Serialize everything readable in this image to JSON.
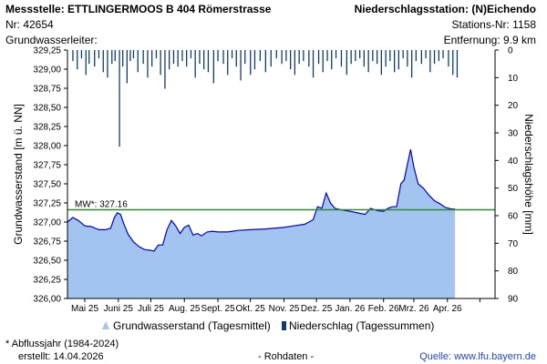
{
  "header": {
    "station_title": "Messstelle: ETTLINGERMOOS B 404 Römerstrasse",
    "station_nr": "Nr: 42654",
    "aquifer_label": "Grundwasserleiter:",
    "precip_station": "Niederschlagsstation: (N)Eichendo",
    "precip_station_nr": "Stations-Nr: 1158",
    "distance": "Entfernung: 9.9 km"
  },
  "footer": {
    "note": "* Abflussjahr (1984-2024)",
    "created": "erstellt:  14.04.2026",
    "rawdata": "- Rohdaten -",
    "source": "Quelle: www.lfu.bayern.de"
  },
  "colors": {
    "groundwater_fill": "#a3c4ee",
    "groundwater_line": "#0000c8",
    "precip_bar": "#113d6e",
    "mean_line": "#2e8b2e",
    "axis": "#000000"
  },
  "chart_data": {
    "type": "area",
    "ylabel_left": "Grundwasserstand [m ü. NN]",
    "ylabel_right": "Niederschlagshöhe [mm]",
    "ylim_left": [
      326.0,
      329.25
    ],
    "ylim_right": [
      0,
      90
    ],
    "left_ticks": [
      "329,25",
      "329,00",
      "328,75",
      "328,50",
      "328,25",
      "328,00",
      "327,75",
      "327,50",
      "327,25",
      "327,00",
      "326,75",
      "326,50",
      "326,25",
      "326,00"
    ],
    "right_ticks": [
      "0",
      "10",
      "20",
      "30",
      "40",
      "50",
      "60",
      "70",
      "80",
      "90"
    ],
    "x_ticks": [
      "Mai 25",
      "Juni 25",
      "Juli 25",
      "Aug. 25",
      "Sept. 25",
      "Okt. 25",
      "Nov. 25",
      "Dez. 25",
      "Jan. 26",
      "Feb. 26",
      "Mrz. 26",
      "Apr. 26"
    ],
    "x_start": "2025-04-15",
    "x_end": "2026-05-15",
    "mean_value": 327.16,
    "mean_label": "MW*: 327.16",
    "legend": [
      {
        "name": "Grundwasserstand (Tagesmittel)",
        "icon": "triangle-area-icon"
      },
      {
        "name": "Niederschlag (Tagessummen)",
        "icon": "bar-icon"
      }
    ],
    "groundwater": {
      "name": "Grundwasserstand (Tagesmittel)",
      "x": [
        "2025-04-15",
        "2025-04-20",
        "2025-04-25",
        "2025-05-01",
        "2025-05-07",
        "2025-05-14",
        "2025-05-20",
        "2025-05-25",
        "2025-05-28",
        "2025-05-31",
        "2025-06-03",
        "2025-06-06",
        "2025-06-10",
        "2025-06-15",
        "2025-06-20",
        "2025-06-25",
        "2025-07-01",
        "2025-07-04",
        "2025-07-08",
        "2025-07-12",
        "2025-07-16",
        "2025-07-20",
        "2025-07-24",
        "2025-07-28",
        "2025-08-01",
        "2025-08-05",
        "2025-08-09",
        "2025-08-13",
        "2025-08-17",
        "2025-08-22",
        "2025-08-27",
        "2025-09-01",
        "2025-09-10",
        "2025-09-20",
        "2025-10-01",
        "2025-10-15",
        "2025-11-01",
        "2025-11-10",
        "2025-11-20",
        "2025-11-28",
        "2025-12-02",
        "2025-12-06",
        "2025-12-10",
        "2025-12-14",
        "2025-12-18",
        "2025-12-24",
        "2026-01-01",
        "2026-01-08",
        "2026-01-15",
        "2026-01-20",
        "2026-01-26",
        "2026-02-01",
        "2026-02-05",
        "2026-02-09",
        "2026-02-13",
        "2026-02-17",
        "2026-02-20",
        "2026-02-23",
        "2026-02-26",
        "2026-03-01",
        "2026-03-05",
        "2026-03-10",
        "2026-03-15",
        "2026-03-20",
        "2026-03-25",
        "2026-03-30",
        "2026-04-05",
        "2026-04-08"
      ],
      "y": [
        327.0,
        327.06,
        327.02,
        326.95,
        326.94,
        326.9,
        326.9,
        326.92,
        327.05,
        327.12,
        327.1,
        326.98,
        326.84,
        326.74,
        326.68,
        326.64,
        326.63,
        326.62,
        326.7,
        326.7,
        326.9,
        327.02,
        326.95,
        326.85,
        326.93,
        326.96,
        326.83,
        326.85,
        326.82,
        326.87,
        326.88,
        326.87,
        326.87,
        326.89,
        326.9,
        326.91,
        326.93,
        326.95,
        326.97,
        327.03,
        327.2,
        327.18,
        327.38,
        327.25,
        327.18,
        327.16,
        327.14,
        327.12,
        327.1,
        327.18,
        327.15,
        327.14,
        327.18,
        327.2,
        327.2,
        327.5,
        327.55,
        327.75,
        327.95,
        327.72,
        327.5,
        327.44,
        327.35,
        327.28,
        327.24,
        327.19,
        327.17,
        327.17
      ]
    },
    "precipitation": {
      "name": "Niederschlag (Tagessummen)",
      "x": [
        "2025-04-20",
        "2025-04-24",
        "2025-04-28",
        "2025-05-02",
        "2025-05-05",
        "2025-05-10",
        "2025-05-14",
        "2025-05-18",
        "2025-05-22",
        "2025-05-26",
        "2025-05-29",
        "2025-06-02",
        "2025-06-05",
        "2025-06-09",
        "2025-06-12",
        "2025-06-15",
        "2025-06-19",
        "2025-06-24",
        "2025-06-28",
        "2025-07-02",
        "2025-07-06",
        "2025-07-10",
        "2025-07-14",
        "2025-07-18",
        "2025-07-22",
        "2025-07-26",
        "2025-07-30",
        "2025-08-03",
        "2025-08-07",
        "2025-08-11",
        "2025-08-15",
        "2025-08-19",
        "2025-08-23",
        "2025-08-28",
        "2025-09-01",
        "2025-09-06",
        "2025-09-10",
        "2025-09-14",
        "2025-09-18",
        "2025-09-22",
        "2025-09-26",
        "2025-10-01",
        "2025-10-05",
        "2025-10-10",
        "2025-10-15",
        "2025-10-20",
        "2025-10-25",
        "2025-10-30",
        "2025-11-03",
        "2025-11-07",
        "2025-11-11",
        "2025-11-15",
        "2025-11-19",
        "2025-11-24",
        "2025-11-28",
        "2025-12-03",
        "2025-12-07",
        "2025-12-11",
        "2025-12-15",
        "2025-12-19",
        "2025-12-24",
        "2025-12-29",
        "2026-01-02",
        "2026-01-06",
        "2026-01-10",
        "2026-01-14",
        "2026-01-18",
        "2026-01-22",
        "2026-01-26",
        "2026-01-30",
        "2026-02-03",
        "2026-02-07",
        "2026-02-11",
        "2026-02-15",
        "2026-02-19",
        "2026-02-23",
        "2026-02-27",
        "2026-03-03",
        "2026-03-08",
        "2026-03-12",
        "2026-03-16",
        "2026-03-20",
        "2026-03-24",
        "2026-03-28",
        "2026-04-02",
        "2026-04-06",
        "2026-04-10"
      ],
      "values": [
        4,
        7,
        3,
        9,
        5,
        6,
        3,
        8,
        10,
        5,
        4,
        35,
        6,
        12,
        4,
        3,
        8,
        5,
        10,
        6,
        3,
        9,
        14,
        7,
        5,
        6,
        4,
        6,
        3,
        10,
        5,
        7,
        8,
        12,
        4,
        5,
        9,
        3,
        6,
        11,
        5,
        9,
        7,
        4,
        8,
        6,
        3,
        5,
        4,
        7,
        9,
        5,
        4,
        6,
        10,
        5,
        8,
        4,
        7,
        3,
        6,
        9,
        5,
        4,
        3,
        6,
        8,
        4,
        5,
        9,
        6,
        4,
        8,
        7,
        3,
        6,
        10,
        4,
        5,
        3,
        8,
        5,
        4,
        3,
        6,
        9,
        10
      ]
    }
  }
}
